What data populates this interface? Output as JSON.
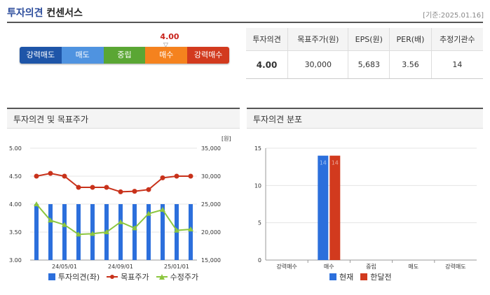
{
  "header": {
    "title": "투자의견",
    "subtitle": "컨센서스",
    "date": "[기준:2025.01.16]"
  },
  "scale": {
    "labels": [
      "강력매도",
      "매도",
      "중립",
      "매수",
      "강력매수"
    ],
    "current_value": "4.00",
    "colors": [
      "#1e55a8",
      "#4f93e0",
      "#5aa634",
      "#f5821e",
      "#d23a1e"
    ]
  },
  "summary": {
    "headers": [
      "투자의견",
      "목표주가(원)",
      "EPS(원)",
      "PER(배)",
      "추정기관수"
    ],
    "values": [
      "4.00",
      "30,000",
      "5,683",
      "3.56",
      "14"
    ]
  },
  "panel_left": {
    "title": "투자의견 및 목표주가"
  },
  "panel_right": {
    "title": "투자의견 분포"
  },
  "colors": {
    "blue": "#2c6fdc",
    "red": "#d23a1e",
    "green": "#8cc63f"
  },
  "chart_data": [
    {
      "type": "bar",
      "unit_right": "[원]",
      "left_ticks": [
        "5.00",
        "4.50",
        "4.00",
        "3.50",
        "3.00"
      ],
      "right_ticks": [
        "35,000",
        "30,000",
        "25,000",
        "20,000",
        "15,000"
      ],
      "x_ticks": [
        "24/05/01",
        "24/09/01",
        "25/01/01"
      ],
      "ylim_left": [
        3.0,
        5.0
      ],
      "ylim_right": [
        15000,
        35000
      ],
      "series": [
        {
          "name": "투자의견(좌)",
          "values": [
            4,
            4,
            4,
            4,
            4,
            4,
            4,
            4,
            4,
            4,
            4,
            4
          ]
        },
        {
          "name": "목표주가",
          "values": [
            30000,
            30500,
            30000,
            28000,
            28000,
            28000,
            27200,
            27300,
            27600,
            29700,
            30000,
            30000
          ]
        },
        {
          "name": "수정주가",
          "values": [
            25000,
            22100,
            21300,
            19600,
            19700,
            20000,
            21800,
            20700,
            23300,
            24000,
            20300,
            20500
          ]
        }
      ]
    },
    {
      "type": "bar",
      "categories": [
        "강력매수",
        "매수",
        "중립",
        "매도",
        "강력매도"
      ],
      "y_ticks": [
        "15",
        "10",
        "5",
        "0"
      ],
      "ylim": [
        0,
        15
      ],
      "series": [
        {
          "name": "현재",
          "values": [
            0,
            14,
            0,
            0,
            0
          ]
        },
        {
          "name": "한달전",
          "values": [
            0,
            14,
            0,
            0,
            0
          ]
        }
      ]
    }
  ]
}
